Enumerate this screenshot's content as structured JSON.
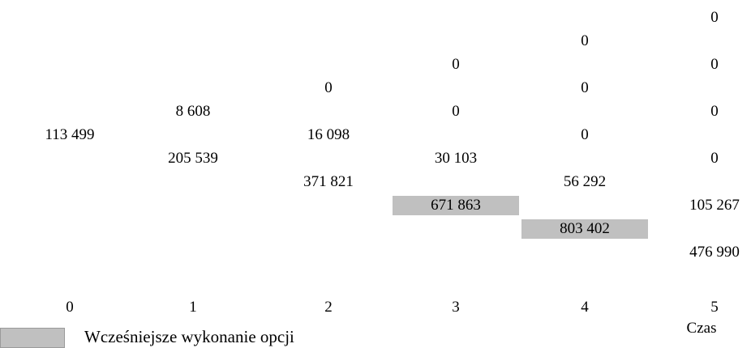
{
  "chart_data": {
    "type": "table",
    "title": "",
    "xlabel": "Czas",
    "time_steps": [
      "0",
      "1",
      "2",
      "3",
      "4",
      "5"
    ],
    "highlight_color": "#c0c0c0",
    "columns": [
      {
        "step": 0,
        "nodes": [
          {
            "value": "113 499",
            "early": false
          }
        ]
      },
      {
        "step": 1,
        "nodes": [
          {
            "value": "8 608",
            "early": false
          },
          {
            "value": "205 539",
            "early": false
          }
        ]
      },
      {
        "step": 2,
        "nodes": [
          {
            "value": "0",
            "early": false
          },
          {
            "value": "16 098",
            "early": false
          },
          {
            "value": "371 821",
            "early": false
          }
        ]
      },
      {
        "step": 3,
        "nodes": [
          {
            "value": "0",
            "early": false
          },
          {
            "value": "0",
            "early": false
          },
          {
            "value": "30 103",
            "early": false
          },
          {
            "value": "671 863",
            "early": true
          }
        ]
      },
      {
        "step": 4,
        "nodes": [
          {
            "value": "0",
            "early": false
          },
          {
            "value": "0",
            "early": false
          },
          {
            "value": "0",
            "early": false
          },
          {
            "value": "56 292",
            "early": false
          },
          {
            "value": "803 402",
            "early": true
          }
        ]
      },
      {
        "step": 5,
        "nodes": [
          {
            "value": "0",
            "early": false
          },
          {
            "value": "0",
            "early": false
          },
          {
            "value": "0",
            "early": false
          },
          {
            "value": "0",
            "early": false
          },
          {
            "value": "105 267",
            "early": false
          },
          {
            "value": "476 990",
            "early": false
          }
        ]
      }
    ]
  },
  "legend": {
    "label": "Wcześniejsze wykonanie opcji"
  }
}
